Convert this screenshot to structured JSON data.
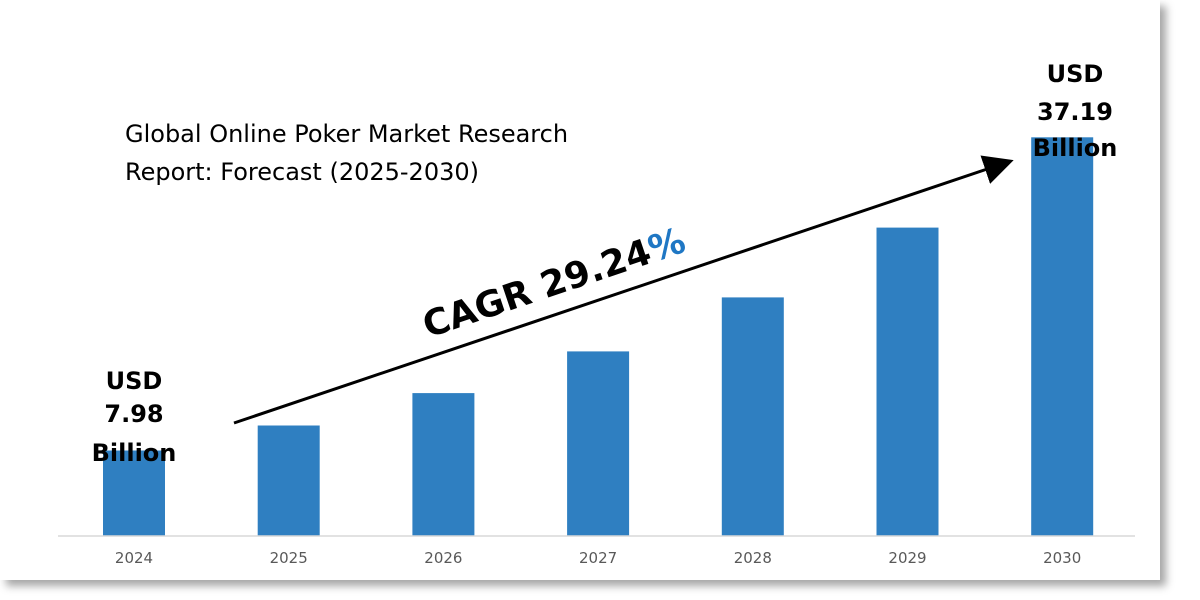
{
  "chart_data": {
    "type": "bar",
    "title_lines": [
      "Global Online Poker Market Research",
      "Report: Forecast (2025-2030)"
    ],
    "categories": [
      "2024",
      "2025",
      "2026",
      "2027",
      "2028",
      "2029",
      "2030"
    ],
    "values": [
      7.98,
      10.31,
      13.33,
      17.22,
      22.26,
      28.77,
      37.19
    ],
    "xlabel": "",
    "ylabel": "",
    "ylim": [
      0,
      50
    ],
    "grid": false,
    "bar_color": "#2f7fc1",
    "annotations": {
      "start_lines": [
        "USD",
        "7.98",
        "Billion"
      ],
      "end_lines": [
        "USD",
        "37.19",
        "Billion"
      ],
      "cagr_text": "CAGR 29.24",
      "cagr_symbol": "%",
      "cagr_symbol_color": "#1f77c4"
    }
  }
}
